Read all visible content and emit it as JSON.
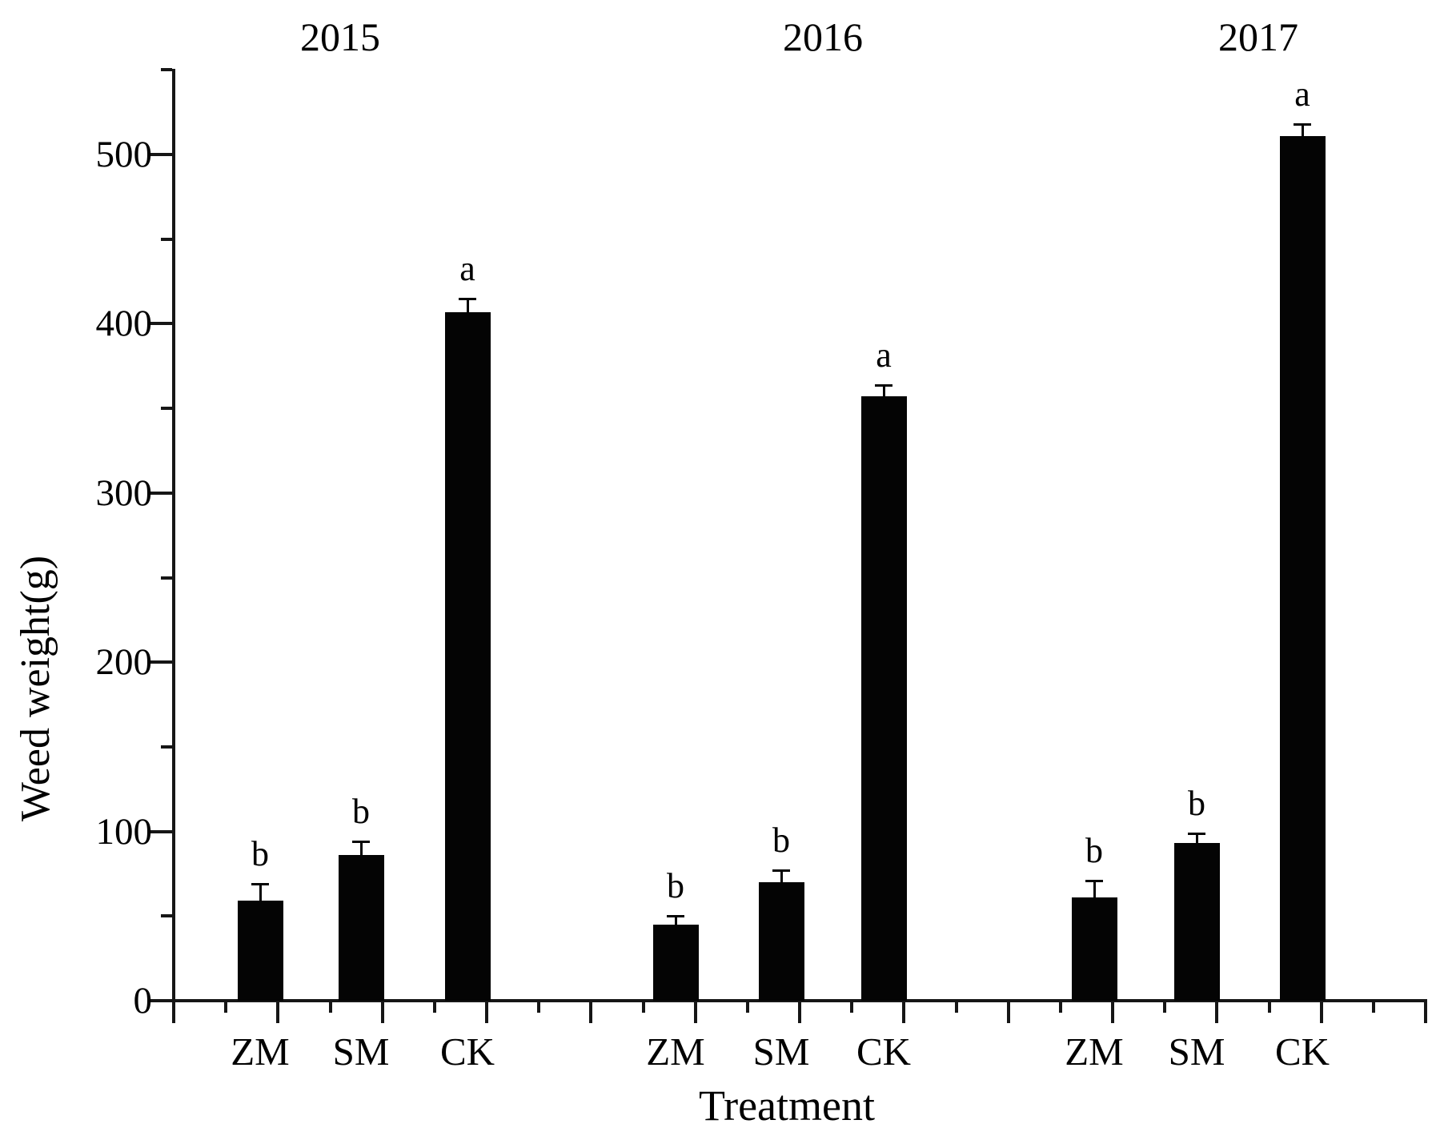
{
  "chart_data": {
    "type": "bar",
    "title": "",
    "ylabel": "Weed weight(g)",
    "xlabel": "Treatment",
    "bar_color": "#000000",
    "y_axis": {
      "range": [
        0,
        550
      ],
      "major_ticks": [
        0,
        100,
        200,
        300,
        400,
        500
      ],
      "minor_tick_interval": 50
    },
    "categories": [
      "ZM",
      "SM",
      "CK"
    ],
    "groups": [
      {
        "year": "2015",
        "bars": [
          {
            "treatment": "ZM",
            "value": 59,
            "error": 10,
            "sig_letter": "b"
          },
          {
            "treatment": "SM",
            "value": 86,
            "error": 8,
            "sig_letter": "b"
          },
          {
            "treatment": "CK",
            "value": 407,
            "error": 8,
            "sig_letter": "a"
          }
        ]
      },
      {
        "year": "2016",
        "bars": [
          {
            "treatment": "ZM",
            "value": 45,
            "error": 5,
            "sig_letter": "b"
          },
          {
            "treatment": "SM",
            "value": 70,
            "error": 7,
            "sig_letter": "b"
          },
          {
            "treatment": "CK",
            "value": 357,
            "error": 7,
            "sig_letter": "a"
          }
        ]
      },
      {
        "year": "2017",
        "bars": [
          {
            "treatment": "ZM",
            "value": 61,
            "error": 10,
            "sig_letter": "b"
          },
          {
            "treatment": "SM",
            "value": 93,
            "error": 6,
            "sig_letter": "b"
          },
          {
            "treatment": "CK",
            "value": 511,
            "error": 7,
            "sig_letter": "a"
          }
        ]
      }
    ]
  }
}
